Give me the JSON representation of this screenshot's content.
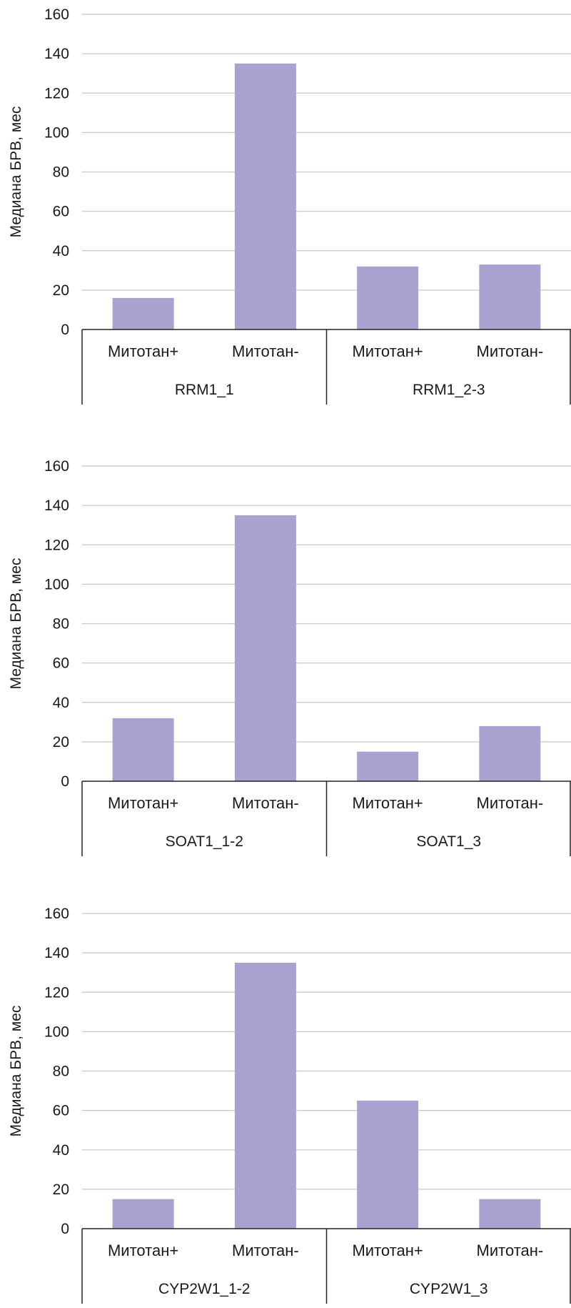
{
  "bar_color": "#a7a2d0",
  "grid_color": "#c8c8c8",
  "axis_color": "#222222",
  "chart_data": [
    {
      "type": "bar",
      "ylabel": "Медиана БРВ, мес",
      "ylim": [
        0,
        160
      ],
      "yticks": [
        0,
        20,
        40,
        60,
        80,
        100,
        120,
        140,
        160
      ],
      "grid": true,
      "categories": [
        "Митотан+",
        "Митотан-",
        "Митотан+",
        "Митотан-"
      ],
      "groups": [
        {
          "label": "RRM1_1",
          "span": [
            0,
            1
          ]
        },
        {
          "label": "RRM1_2-3",
          "span": [
            2,
            3
          ]
        }
      ],
      "values": [
        16,
        135,
        32,
        33
      ]
    },
    {
      "type": "bar",
      "ylabel": "Медиана БРВ, мес",
      "ylim": [
        0,
        160
      ],
      "yticks": [
        0,
        20,
        40,
        60,
        80,
        100,
        120,
        140,
        160
      ],
      "grid": true,
      "categories": [
        "Митотан+",
        "Митотан-",
        "Митотан+",
        "Митотан-"
      ],
      "groups": [
        {
          "label": "SOAT1_1-2",
          "span": [
            0,
            1
          ]
        },
        {
          "label": "SOAT1_3",
          "span": [
            2,
            3
          ]
        }
      ],
      "values": [
        32,
        135,
        15,
        28
      ]
    },
    {
      "type": "bar",
      "ylabel": "Медиана БРВ, мес",
      "ylim": [
        0,
        160
      ],
      "yticks": [
        0,
        20,
        40,
        60,
        80,
        100,
        120,
        140,
        160
      ],
      "grid": true,
      "categories": [
        "Митотан+",
        "Митотан-",
        "Митотан+",
        "Митотан-"
      ],
      "groups": [
        {
          "label": "CYP2W1_1-2",
          "span": [
            0,
            1
          ]
        },
        {
          "label": "CYP2W1_3",
          "span": [
            2,
            3
          ]
        }
      ],
      "values": [
        15,
        135,
        65,
        15
      ]
    }
  ]
}
